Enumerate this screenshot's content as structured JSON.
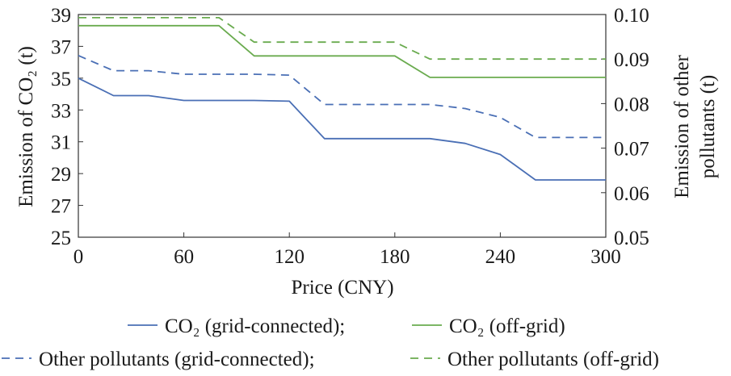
{
  "chart_data": {
    "type": "line",
    "xlabel": "Price (CNY)",
    "ylabel_left": "Emission of CO₂ (t)",
    "ylabel_right_line1": "Emission of other",
    "ylabel_right_line2": "pollutants (t)",
    "xlim": [
      0,
      300
    ],
    "ylim_left": [
      25,
      39
    ],
    "ylim_right": [
      0.05,
      0.1
    ],
    "x_ticks": [
      "0",
      "60",
      "120",
      "180",
      "240",
      "300"
    ],
    "y_left_ticks": [
      "25",
      "27",
      "29",
      "31",
      "33",
      "35",
      "37",
      "39"
    ],
    "y_right_ticks": [
      "0.05",
      "0.06",
      "0.07",
      "0.08",
      "0.09",
      "0.10"
    ],
    "grid": false,
    "legend_position": "bottom",
    "series": [
      {
        "name": "CO₂ (grid-connected);",
        "axis": "left",
        "color": "#4a6fb5",
        "dash": "solid",
        "x": [
          0,
          20,
          40,
          60,
          80,
          100,
          120,
          140,
          160,
          180,
          200,
          220,
          240,
          260,
          280,
          300
        ],
        "y": [
          35.0,
          33.9,
          33.9,
          33.6,
          33.6,
          33.6,
          33.55,
          31.2,
          31.2,
          31.2,
          31.2,
          30.9,
          30.2,
          28.6,
          28.6,
          28.6
        ]
      },
      {
        "name": "CO₂ (off-grid)",
        "axis": "left",
        "color": "#6aab4f",
        "dash": "solid",
        "x": [
          0,
          20,
          40,
          60,
          80,
          100,
          120,
          140,
          160,
          180,
          200,
          220,
          240,
          260,
          280,
          300
        ],
        "y": [
          38.3,
          38.3,
          38.3,
          38.3,
          38.3,
          36.4,
          36.4,
          36.4,
          36.4,
          36.4,
          35.05,
          35.05,
          35.05,
          35.05,
          35.05,
          35.05
        ]
      },
      {
        "name": "Other pollutants (grid-connected);",
        "axis": "right",
        "color": "#4a6fb5",
        "dash": "dashed",
        "x": [
          0,
          20,
          40,
          60,
          80,
          100,
          120,
          140,
          160,
          180,
          200,
          220,
          240,
          260,
          280,
          300
        ],
        "y": [
          0.0908,
          0.0874,
          0.0874,
          0.0866,
          0.0866,
          0.0866,
          0.0864,
          0.0798,
          0.0798,
          0.0798,
          0.0798,
          0.0789,
          0.0769,
          0.0724,
          0.0724,
          0.0724
        ]
      },
      {
        "name": "Other pollutants (off-grid)",
        "axis": "right",
        "color": "#6aab4f",
        "dash": "dashed",
        "x": [
          0,
          20,
          40,
          60,
          80,
          100,
          120,
          140,
          160,
          180,
          200,
          220,
          240,
          260,
          280,
          300
        ],
        "y": [
          0.0993,
          0.0993,
          0.0993,
          0.0993,
          0.0993,
          0.0938,
          0.0938,
          0.0938,
          0.0938,
          0.0938,
          0.09,
          0.09,
          0.09,
          0.09,
          0.09,
          0.09
        ]
      }
    ]
  }
}
